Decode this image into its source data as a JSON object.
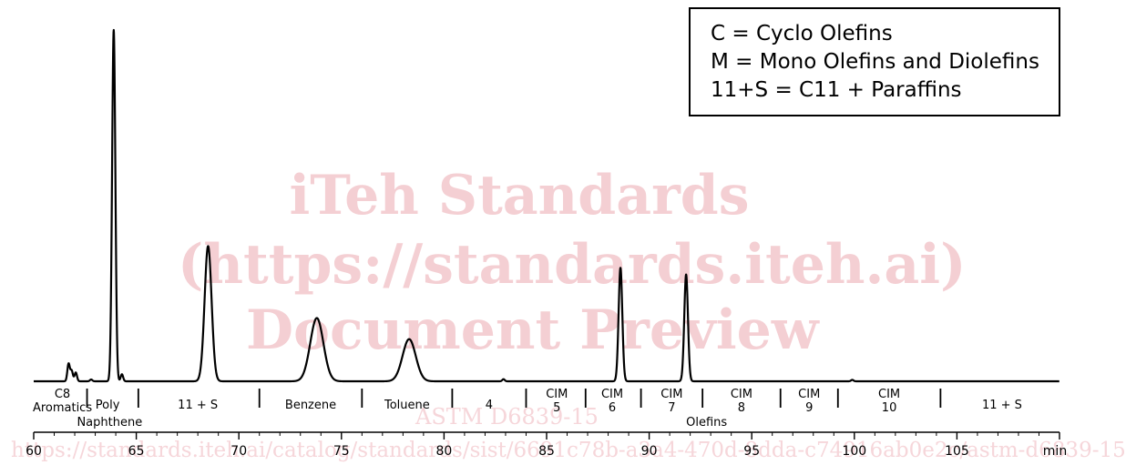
{
  "chart_data": {
    "type": "line",
    "title": "",
    "xlabel": "",
    "x_unit": "min",
    "ylabel": "",
    "xlim": [
      60,
      110
    ],
    "x_ticks": [
      60,
      65,
      70,
      75,
      80,
      85,
      90,
      95,
      100,
      105
    ],
    "grid": false,
    "legend": {
      "placement": "top-right",
      "entries": [
        "C = Cyclo Olefins",
        "M = Mono Olefins and Diolefins",
        "11+S = C11 + Paraffins"
      ]
    },
    "series": [
      {
        "baseline": 0,
        "peaks": [
          {
            "rt": 61.7,
            "height": 0.05
          },
          {
            "rt": 61.85,
            "height": 0.03
          },
          {
            "rt": 62.05,
            "height": 0.025
          },
          {
            "rt": 62.8,
            "height": 0.005
          },
          {
            "rt": 63.9,
            "height": 1.0
          },
          {
            "rt": 64.3,
            "height": 0.02
          },
          {
            "rt": 68.5,
            "height": 0.385
          },
          {
            "rt": 73.8,
            "height": 0.18
          },
          {
            "rt": 78.3,
            "height": 0.12
          },
          {
            "rt": 82.9,
            "height": 0.006
          },
          {
            "rt": 88.6,
            "height": 0.323
          },
          {
            "rt": 91.8,
            "height": 0.304
          },
          {
            "rt": 99.9,
            "height": 0.004
          }
        ]
      }
    ],
    "region_dividers": [
      62.6,
      65.1,
      71.0,
      76.0,
      80.4,
      84.0,
      86.9,
      89.6,
      92.6,
      96.4,
      99.2,
      104.2
    ],
    "region_labels": [
      {
        "x": 61.4,
        "lines": [
          "C8",
          "Aromatics"
        ]
      },
      {
        "x": 63.6,
        "lines": [
          "Poly"
        ]
      },
      {
        "x": 68.0,
        "lines": [
          "11 + S"
        ]
      },
      {
        "x": 73.5,
        "lines": [
          "Benzene"
        ]
      },
      {
        "x": 78.2,
        "lines": [
          "Toluene"
        ]
      },
      {
        "x": 82.2,
        "lines": [
          "4"
        ]
      },
      {
        "x": 85.5,
        "lines": [
          "CIM",
          "5"
        ]
      },
      {
        "x": 88.2,
        "lines": [
          "CIM",
          "6"
        ]
      },
      {
        "x": 91.1,
        "lines": [
          "CIM",
          "7"
        ]
      },
      {
        "x": 94.5,
        "lines": [
          "CIM",
          "8"
        ]
      },
      {
        "x": 97.8,
        "lines": [
          "CIM",
          "9"
        ]
      },
      {
        "x": 101.7,
        "lines": [
          "CIM",
          "10"
        ]
      },
      {
        "x": 107.2,
        "lines": [
          "11 + S"
        ]
      }
    ],
    "group_labels": [
      {
        "x": 63.7,
        "text": "Naphthene"
      },
      {
        "x": 92.8,
        "text": "Olefins"
      }
    ]
  },
  "watermark": {
    "line1": "iTeh Standards",
    "line2": "(https://standards.iteh.ai)",
    "line3": "Document Preview",
    "code": "ASTM D6839-15",
    "url": "https://standards.iteh.ai/catalog/standards/sist/6691c78b-a3a4-470d-8dda-c74916ab0e2c/astm-d6839-15"
  }
}
